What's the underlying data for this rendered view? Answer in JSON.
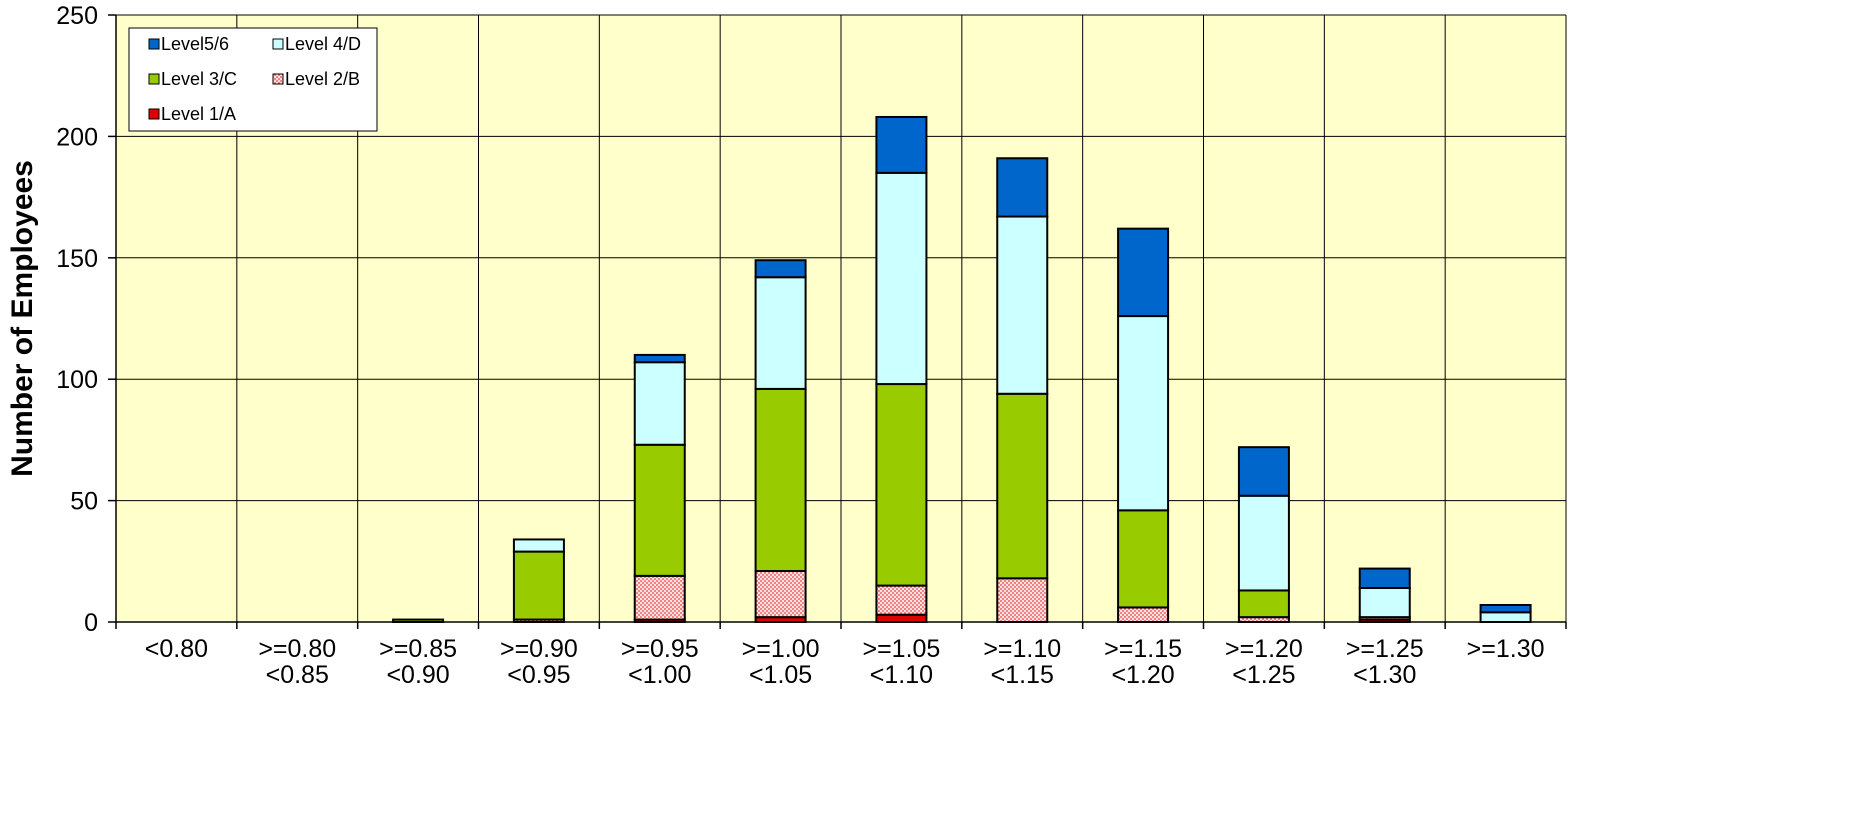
{
  "chart_data": {
    "type": "bar",
    "stacked": true,
    "title": "",
    "xlabel": "",
    "ylabel": "Number of Employees",
    "ylim": [
      0,
      250
    ],
    "yticks": [
      0,
      50,
      100,
      150,
      200,
      250
    ],
    "grid": true,
    "legend_position": "top-left",
    "plot_background": "#FFFFCC",
    "categories": [
      [
        "<0.80"
      ],
      [
        ">=0.80",
        "<0.85"
      ],
      [
        ">=0.85",
        "<0.90"
      ],
      [
        ">=0.90",
        "<0.95"
      ],
      [
        ">=0.95",
        "<1.00"
      ],
      [
        ">=1.00",
        "<1.05"
      ],
      [
        ">=1.05",
        "<1.10"
      ],
      [
        ">=1.10",
        "<1.15"
      ],
      [
        ">=1.15",
        "<1.20"
      ],
      [
        ">=1.20",
        "<1.25"
      ],
      [
        ">=1.25",
        "<1.30"
      ],
      [
        ">=1.30"
      ]
    ],
    "series": [
      {
        "name": "Level 1/A",
        "color": "#E00000",
        "pattern": "solid",
        "values": [
          0,
          0,
          0,
          0,
          1,
          2,
          3,
          0,
          0,
          0,
          1,
          0
        ]
      },
      {
        "name": "Level 2/B",
        "color": "#FFCCCC",
        "pattern": "dots",
        "values": [
          0,
          0,
          0,
          1,
          18,
          19,
          12,
          18,
          6,
          2,
          1,
          0
        ]
      },
      {
        "name": "Level 3/C",
        "color": "#99CC00",
        "pattern": "solid",
        "values": [
          0,
          0,
          1,
          28,
          54,
          75,
          83,
          76,
          40,
          11,
          0,
          0
        ]
      },
      {
        "name": "Level 4/D",
        "color": "#CCFFFF",
        "pattern": "solid",
        "values": [
          0,
          0,
          0,
          5,
          34,
          46,
          87,
          73,
          80,
          39,
          12,
          4
        ]
      },
      {
        "name": "Level5/6",
        "color": "#0066CC",
        "pattern": "solid",
        "values": [
          0,
          0,
          0,
          0,
          3,
          7,
          23,
          24,
          36,
          20,
          8,
          3
        ]
      }
    ],
    "legend_order": [
      "Level5/6",
      "Level 4/D",
      "Level 3/C",
      "Level 2/B",
      "Level 1/A"
    ]
  }
}
